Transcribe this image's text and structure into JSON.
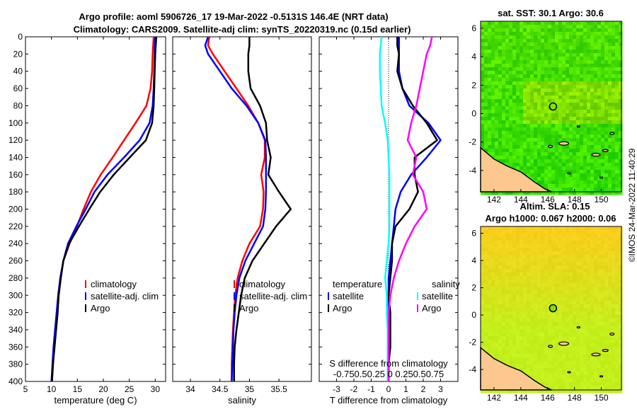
{
  "figure": {
    "title_line1": "Argo profile: aoml 5906726_17 19-Mar-2022 -0.5131S 146.4E (NRT data)",
    "title_line2": "Climatology: CARS2009. Satellite-adj clim: synTS_20220319.nc (0.15d earlier)",
    "credit": "©IMOS 24-Mar-2022 11:40:29"
  },
  "colors": {
    "climatology": "#ff0000",
    "satellite": "#0000ff",
    "argo": "#000000",
    "salinity_diff": "#ff00ff",
    "salinity_sat": "#00ffff",
    "land": "#fcc890"
  },
  "chart_data": [
    {
      "id": "temperature",
      "type": "line",
      "xlabel": "temperature (deg C)",
      "ylabel": "",
      "xlim": [
        5,
        32
      ],
      "ylim": [
        400,
        0
      ],
      "xticks": [
        5,
        10,
        15,
        20,
        25,
        30
      ],
      "yticks": [
        0,
        20,
        40,
        60,
        80,
        100,
        120,
        140,
        160,
        180,
        200,
        220,
        240,
        260,
        280,
        300,
        320,
        340,
        360,
        380,
        400
      ],
      "depth": [
        0,
        10,
        20,
        40,
        60,
        80,
        100,
        120,
        140,
        160,
        180,
        200,
        220,
        240,
        260,
        280,
        300,
        320,
        340,
        360,
        380,
        400
      ],
      "legend": [
        "climatology",
        "satellite-adj. clim",
        "Argo"
      ],
      "series": [
        {
          "name": "climatology",
          "values": [
            29.7,
            29.6,
            29.5,
            29.4,
            29.1,
            28.3,
            26.2,
            24.0,
            21.8,
            19.5,
            17.6,
            16.2,
            14.9,
            13.5,
            12.3,
            11.8,
            11.4,
            11.1,
            10.8,
            10.5,
            10.3,
            10.1
          ]
        },
        {
          "name": "satellite-adj. clim",
          "values": [
            30.0,
            29.9,
            29.9,
            29.8,
            29.7,
            29.5,
            28.9,
            27.0,
            24.0,
            20.8,
            18.3,
            16.6,
            14.8,
            13.2,
            12.3,
            11.7,
            11.3,
            11.0,
            10.7,
            10.4,
            10.2,
            10.0
          ]
        },
        {
          "name": "Argo",
          "values": [
            30.2,
            30.1,
            30.0,
            29.9,
            29.8,
            29.7,
            29.4,
            28.2,
            25.1,
            22.0,
            19.4,
            17.3,
            15.3,
            13.4,
            12.3,
            11.8,
            11.4,
            11.2,
            10.9,
            10.6,
            10.3,
            10.1
          ]
        }
      ]
    },
    {
      "id": "salinity",
      "type": "line",
      "xlabel": "salinity",
      "ylabel": "",
      "xlim": [
        33.7,
        36.05
      ],
      "ylim": [
        400,
        0
      ],
      "xticks": [
        34,
        34.5,
        35,
        35.5
      ],
      "xtick_labels": [
        "34",
        "34.5",
        "35",
        "35.5"
      ],
      "depth": [
        0,
        10,
        20,
        40,
        60,
        80,
        100,
        120,
        140,
        160,
        180,
        200,
        220,
        240,
        260,
        280,
        300,
        320,
        340,
        360,
        380,
        400
      ],
      "legend": [
        "climatology",
        "satellite-adj. clim",
        "Argo"
      ],
      "series": [
        {
          "name": "climatology",
          "values": [
            34.32,
            34.3,
            34.38,
            34.58,
            34.78,
            34.98,
            35.15,
            35.26,
            35.26,
            35.2,
            35.24,
            35.23,
            35.18,
            35.0,
            34.88,
            34.8,
            34.76,
            34.74,
            34.72,
            34.71,
            34.7,
            34.7
          ]
        },
        {
          "name": "satellite-adj. clim",
          "values": [
            34.3,
            34.25,
            34.3,
            34.5,
            34.7,
            34.95,
            35.15,
            35.27,
            35.28,
            35.28,
            35.28,
            35.27,
            35.23,
            35.08,
            34.93,
            34.83,
            34.78,
            34.75,
            34.73,
            34.72,
            34.71,
            34.7
          ]
        },
        {
          "name": "Argo",
          "values": [
            35.0,
            35.0,
            34.98,
            34.98,
            35.02,
            35.18,
            35.28,
            35.3,
            35.36,
            35.32,
            35.5,
            35.7,
            35.45,
            35.25,
            35.05,
            34.92,
            34.86,
            34.82,
            34.78,
            34.75,
            34.74,
            34.74
          ]
        }
      ]
    },
    {
      "id": "difference",
      "type": "line",
      "xlabel": "T difference from climatology",
      "xlim": [
        -4,
        4
      ],
      "ylim": [
        400,
        0
      ],
      "xticks": [
        -3,
        -2,
        -1,
        0,
        1,
        2,
        3
      ],
      "top_axis_label": "S difference from climatology",
      "top_axis_ticks": [
        "-0.75",
        "0.5",
        "0.25",
        "0",
        "0.25",
        "0.5",
        "0.75"
      ],
      "depth": [
        0,
        10,
        20,
        40,
        60,
        80,
        100,
        120,
        140,
        160,
        180,
        200,
        220,
        240,
        260,
        280,
        300,
        320,
        340,
        360,
        380,
        400
      ],
      "legend_temperature": [
        "temperature",
        "satellite",
        "Argo"
      ],
      "legend_salinity": [
        "salinity",
        "satellite",
        "Argo"
      ],
      "series": [
        {
          "name": "temperature satellite",
          "values": [
            0.6,
            0.6,
            0.6,
            0.6,
            0.8,
            1.2,
            2.3,
            3.0,
            2.2,
            1.3,
            0.7,
            0.4,
            0.3,
            0.2,
            0.1,
            0.0,
            0.0,
            0.0,
            0.0,
            0.0,
            0.0,
            0.0
          ]
        },
        {
          "name": "temperature Argo",
          "values": [
            0.5,
            0.5,
            0.6,
            0.5,
            0.8,
            1.4,
            2.2,
            2.8,
            1.5,
            1.5,
            1.7,
            1.2,
            0.4,
            0.2,
            0.2,
            0.1,
            0.0,
            0.1,
            0.1,
            0.1,
            0.0,
            0.0
          ]
        },
        {
          "name": "salinity satellite",
          "values": [
            -0.4,
            -0.45,
            -0.5,
            -0.5,
            -0.45,
            -0.4,
            -0.2,
            -0.05,
            0.0,
            0.05,
            0.05,
            0.05,
            0.05,
            0.0,
            -0.1,
            -0.2,
            -0.1,
            -0.1,
            -0.05,
            -0.05,
            -0.05,
            -0.05
          ]
        },
        {
          "name": "salinity Argo",
          "values": [
            2.5,
            2.4,
            2.2,
            2.0,
            1.8,
            1.6,
            1.3,
            1.1,
            1.6,
            1.4,
            2.0,
            2.2,
            1.5,
            1.0,
            0.6,
            0.3,
            0.1,
            0.0,
            0.0,
            0.0,
            0.0,
            0.0
          ]
        }
      ]
    },
    {
      "id": "sst_map",
      "type": "heatmap",
      "title": "sat. SST: 30.1 Argo: 30.6",
      "xlim": [
        141,
        151.5
      ],
      "ylim": [
        -5.5,
        6.5
      ],
      "xticks": [
        142,
        144,
        146,
        148,
        150
      ],
      "yticks": [
        -4,
        -2,
        0,
        2,
        4,
        6
      ],
      "argo_position": [
        146.4,
        0.5
      ],
      "argo_value": 30.6,
      "sat_value": 30.1
    },
    {
      "id": "sla_map",
      "type": "heatmap",
      "title": "Altim. SLA: 0.15",
      "subtitle": "Argo h1000: 0.067 h2000: 0.06",
      "xlim": [
        141,
        151.5
      ],
      "ylim": [
        -5.5,
        6.5
      ],
      "xticks": [
        142,
        144,
        146,
        148,
        150
      ],
      "yticks": [
        -4,
        -2,
        0,
        2,
        4,
        6
      ],
      "argo_position": [
        146.4,
        0.5
      ],
      "sla_value": 0.15
    }
  ]
}
